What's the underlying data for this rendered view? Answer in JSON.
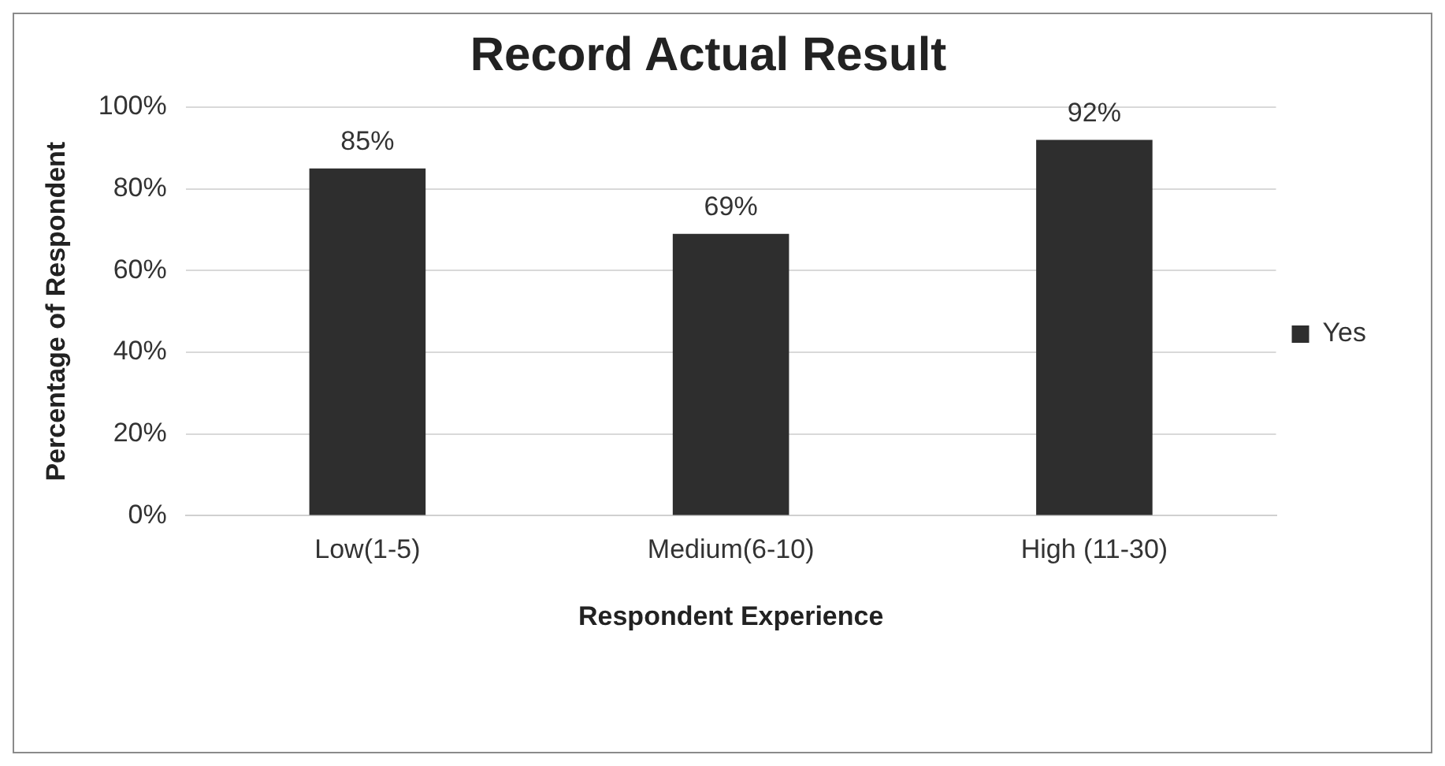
{
  "chart_data": {
    "type": "bar",
    "title": "Record Actual Result",
    "xlabel": "Respondent Experience",
    "ylabel": "Percentage of Respondent",
    "categories": [
      "Low(1-5)",
      "Medium(6-10)",
      "High (11-30)"
    ],
    "series": [
      {
        "name": "Yes",
        "color": "#2e2e2e",
        "values": [
          85,
          69,
          92
        ],
        "value_labels": [
          "85%",
          "69%",
          "92%"
        ]
      }
    ],
    "ylim": [
      0,
      100
    ],
    "yticks": [
      {
        "value": 0,
        "label": "0%"
      },
      {
        "value": 20,
        "label": "20%"
      },
      {
        "value": 40,
        "label": "40%"
      },
      {
        "value": 60,
        "label": "60%"
      },
      {
        "value": 80,
        "label": "80%"
      },
      {
        "value": 100,
        "label": "100%"
      }
    ],
    "grid": "y",
    "legend": "right"
  }
}
